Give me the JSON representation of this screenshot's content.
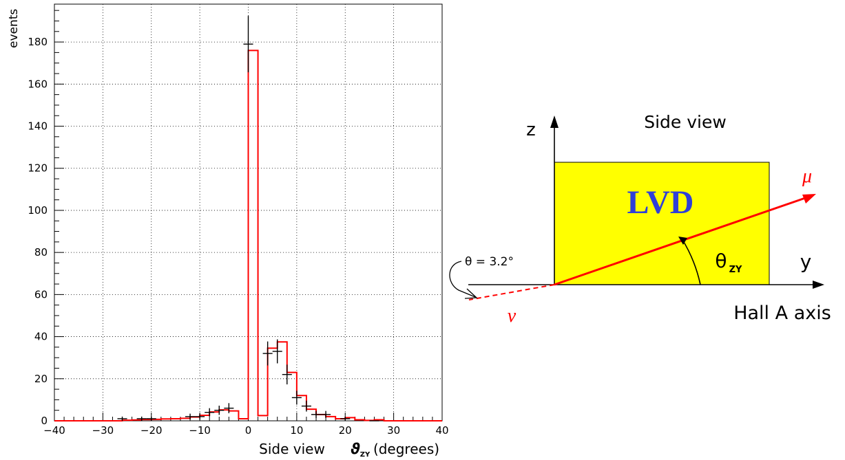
{
  "chart_data": {
    "type": "bar",
    "ylabel": "events",
    "xlabel_prefix": "Side view",
    "xlabel_symbol": "ϑ",
    "xlabel_subscript": "ZY",
    "xlabel_suffix": "(degrees)",
    "xlim": [
      -40,
      40
    ],
    "ylim": [
      0,
      198
    ],
    "x_ticks": [
      -40,
      -30,
      -20,
      -10,
      0,
      10,
      20,
      30,
      40
    ],
    "y_ticks": [
      0,
      20,
      40,
      60,
      80,
      100,
      120,
      140,
      160,
      180
    ],
    "grid": true,
    "series": [
      {
        "style": "histogram",
        "color": "#ff0000",
        "bin_edges": [
          -40,
          -38,
          -36,
          -34,
          -32,
          -30,
          -28,
          -26,
          -24,
          -22,
          -20,
          -18,
          -16,
          -14,
          -12,
          -10,
          -8,
          -6,
          -4,
          -2,
          0,
          2,
          4,
          6,
          8,
          10,
          12,
          14,
          16,
          18,
          20,
          22,
          24,
          26,
          28,
          30,
          32,
          34,
          36,
          38,
          40
        ],
        "values": [
          0,
          0,
          0,
          0,
          0,
          0,
          0,
          0.3,
          0.4,
          0.6,
          0.7,
          0.9,
          1,
          1.2,
          1.8,
          2.6,
          4.2,
          5.2,
          4.7,
          1,
          176,
          2.5,
          34.5,
          37.5,
          23,
          12,
          5.5,
          3,
          2,
          1,
          1.5,
          0.5,
          0.2,
          0.5,
          0,
          0,
          0,
          0,
          0,
          0
        ]
      },
      {
        "style": "error_bars",
        "color": "#000000",
        "x": [
          -26,
          -22,
          -20,
          -12,
          -10,
          -8,
          -6,
          -4,
          0,
          4,
          6,
          8,
          10,
          12,
          14,
          16,
          20,
          26
        ],
        "y": [
          1,
          1,
          1,
          2,
          2,
          4,
          5,
          6,
          179,
          32,
          33,
          22,
          11,
          7,
          3,
          3,
          1,
          0
        ],
        "yerr": [
          1,
          1,
          1,
          1.4,
          1.4,
          2,
          2.2,
          2.4,
          13.4,
          5.7,
          5.7,
          4.7,
          3.3,
          2.6,
          1.7,
          1.7,
          1,
          0
        ],
        "xerr": 1
      }
    ]
  },
  "diagram": {
    "title": "Side view",
    "z_axis_label": "z",
    "y_axis_label": "y",
    "box_label": "LVD",
    "box_color": "#ffff00",
    "box_label_color": "#2f3fd8",
    "mu_label": "μ",
    "nu_label": "ν",
    "theta_label": "θ",
    "theta_sub": "ZY",
    "angle_note": "θ = 3.2°",
    "axis_caption": "Hall A axis",
    "track_color": "#ff0000"
  }
}
